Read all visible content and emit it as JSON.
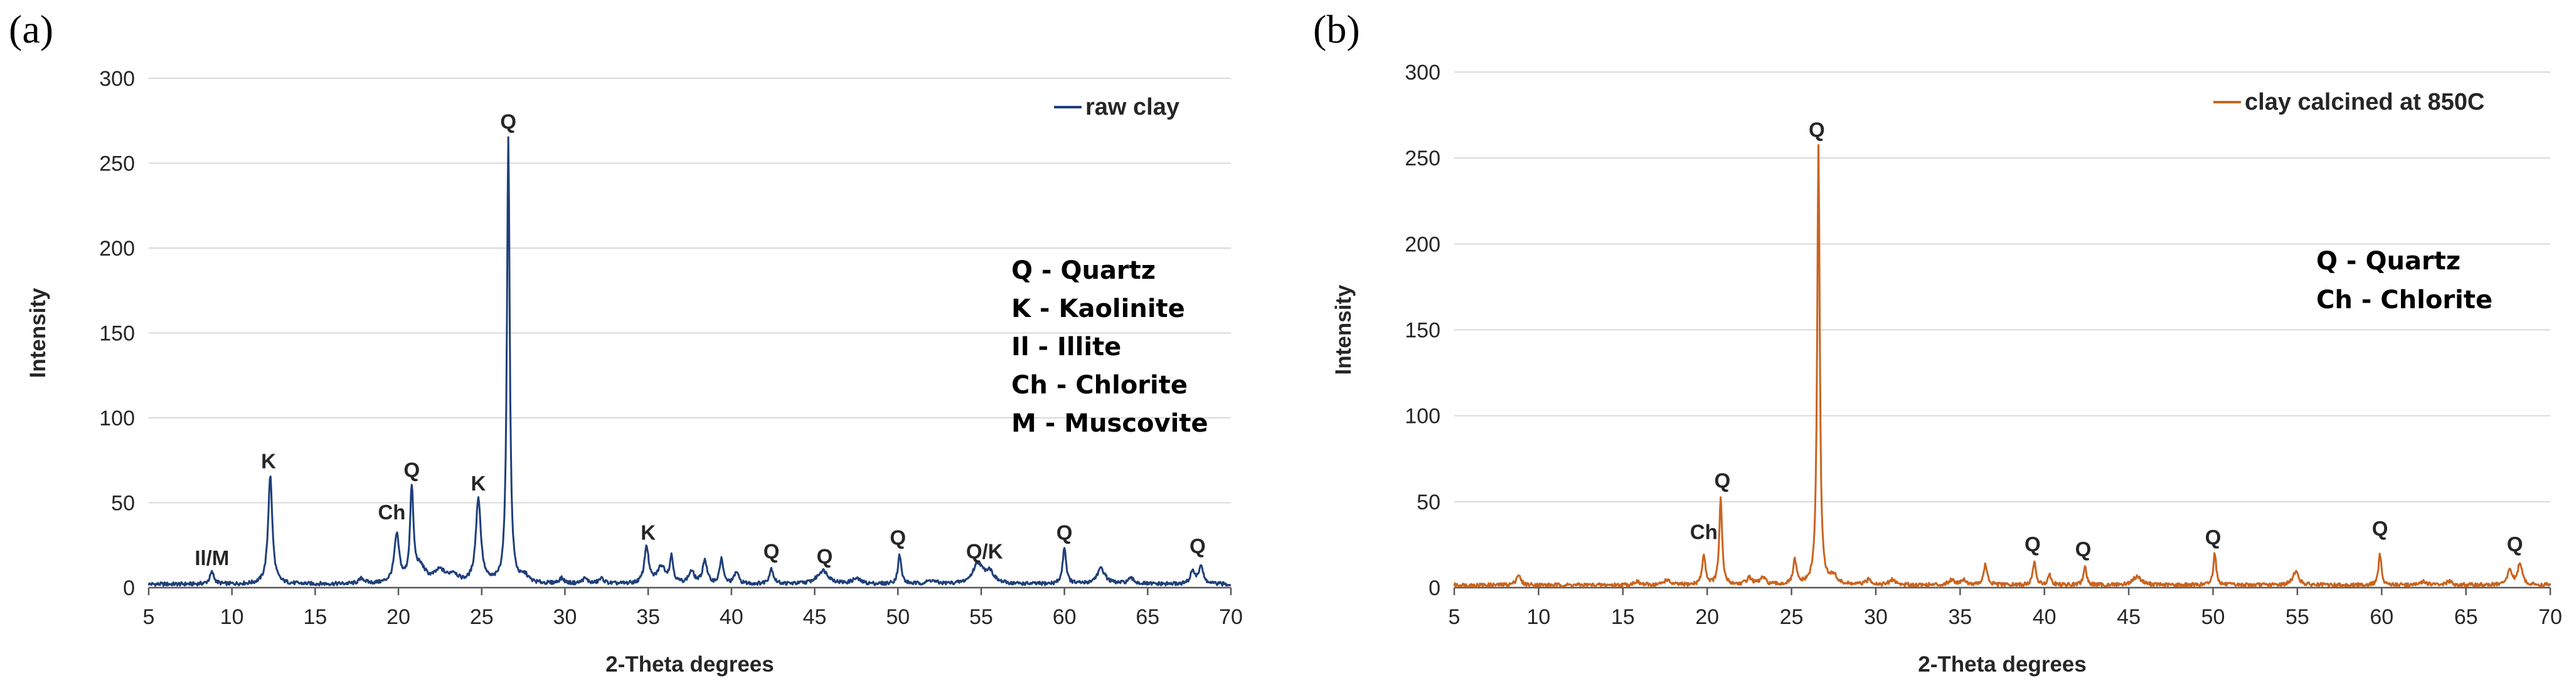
{
  "chart_data": [
    {
      "type": "line",
      "panel_label": "(a)",
      "xlabel": "2-Theta degrees",
      "ylabel": "Intensity",
      "xlim": [
        5,
        70
      ],
      "ylim": [
        0,
        300
      ],
      "x_ticks": [
        5,
        10,
        15,
        20,
        25,
        30,
        35,
        40,
        45,
        50,
        55,
        60,
        65,
        70
      ],
      "y_ticks": [
        0,
        50,
        100,
        150,
        200,
        250,
        300
      ],
      "grid": true,
      "legend_position": "top-right",
      "series": [
        {
          "name": "raw clay",
          "color": "#1f3f7a",
          "baseline": 2,
          "peaks": [
            [
              8.8,
              7,
              0.15
            ],
            [
              12.3,
              64,
              0.15
            ],
            [
              17.8,
              3,
              0.2
            ],
            [
              19.9,
              28,
              0.18
            ],
            [
              20.8,
              54,
              0.12
            ],
            [
              21.3,
              9,
              0.4
            ],
            [
              22.5,
              7,
              0.4
            ],
            [
              23.3,
              5,
              0.3
            ],
            [
              24.8,
              50,
              0.18
            ],
            [
              26.6,
              262,
              0.1
            ],
            [
              27.6,
              4,
              0.25
            ],
            [
              29.8,
              3,
              0.2
            ],
            [
              31.2,
              3,
              0.2
            ],
            [
              32.2,
              3,
              0.2
            ],
            [
              34.9,
              22,
              0.15
            ],
            [
              35.8,
              10,
              0.3
            ],
            [
              36.4,
              15,
              0.12
            ],
            [
              37.6,
              7,
              0.2
            ],
            [
              38.4,
              14,
              0.15
            ],
            [
              39.4,
              15,
              0.12
            ],
            [
              40.3,
              7,
              0.15
            ],
            [
              42.4,
              9,
              0.15
            ],
            [
              45.5,
              8,
              0.4
            ],
            [
              47.5,
              3,
              0.3
            ],
            [
              50.1,
              17,
              0.12
            ],
            [
              52.0,
              2,
              0.3
            ],
            [
              54.8,
              12,
              0.35
            ],
            [
              55.5,
              7,
              0.3
            ],
            [
              60.0,
              22,
              0.12
            ],
            [
              62.2,
              9,
              0.3
            ],
            [
              64.0,
              3,
              0.25
            ],
            [
              67.7,
              8,
              0.15
            ],
            [
              68.2,
              11,
              0.15
            ]
          ]
        }
      ],
      "annotations": [
        {
          "text": "Il/M",
          "x": 8.8,
          "y": 11
        },
        {
          "text": "K",
          "x": 12.2,
          "y": 68
        },
        {
          "text": "Ch",
          "x": 19.6,
          "y": 38
        },
        {
          "text": "Q",
          "x": 20.8,
          "y": 63
        },
        {
          "text": "K",
          "x": 24.8,
          "y": 55
        },
        {
          "text": "Q",
          "x": 26.6,
          "y": 268
        },
        {
          "text": "K",
          "x": 35.0,
          "y": 26
        },
        {
          "text": "Q",
          "x": 42.4,
          "y": 15
        },
        {
          "text": "Q",
          "x": 45.6,
          "y": 12
        },
        {
          "text": "Q",
          "x": 50.0,
          "y": 23
        },
        {
          "text": "Q/K",
          "x": 55.2,
          "y": 15
        },
        {
          "text": "Q",
          "x": 60.0,
          "y": 26
        },
        {
          "text": "Q",
          "x": 68.0,
          "y": 18
        }
      ],
      "key": [
        "Q - Quartz",
        "K - Kaolinite",
        "Il - Illite",
        "Ch - Chlorite",
        "M - Muscovite"
      ]
    },
    {
      "type": "line",
      "panel_label": "(b)",
      "xlabel": "2-Theta degrees",
      "ylabel": "Intensity",
      "xlim": [
        5,
        70
      ],
      "ylim": [
        0,
        300
      ],
      "x_ticks": [
        5,
        10,
        15,
        20,
        25,
        30,
        35,
        40,
        45,
        50,
        55,
        60,
        65,
        70
      ],
      "y_ticks": [
        0,
        50,
        100,
        150,
        200,
        250,
        300
      ],
      "grid": true,
      "legend_position": "top-right",
      "series": [
        {
          "name": "clay calcined at 850C",
          "color": "#c9641e",
          "baseline": 1.5,
          "peaks": [
            [
              8.8,
              6,
              0.15
            ],
            [
              15.8,
              2,
              0.2
            ],
            [
              17.6,
              3,
              0.2
            ],
            [
              19.8,
              17,
              0.12
            ],
            [
              20.8,
              50,
              0.1
            ],
            [
              22.5,
              4,
              0.2
            ],
            [
              23.3,
              4,
              0.2
            ],
            [
              25.2,
              14,
              0.12
            ],
            [
              26.6,
              255,
              0.09
            ],
            [
              27.5,
              5,
              0.2
            ],
            [
              29.6,
              3,
              0.2
            ],
            [
              31.0,
              3,
              0.2
            ],
            [
              34.5,
              3,
              0.2
            ],
            [
              35.2,
              3,
              0.2
            ],
            [
              36.5,
              12,
              0.12
            ],
            [
              39.4,
              14,
              0.1
            ],
            [
              40.3,
              6,
              0.12
            ],
            [
              42.4,
              11,
              0.1
            ],
            [
              45.5,
              5,
              0.3
            ],
            [
              50.1,
              19,
              0.1
            ],
            [
              54.9,
              8,
              0.2
            ],
            [
              59.9,
              18,
              0.1
            ],
            [
              62.5,
              2,
              0.2
            ],
            [
              64.0,
              2,
              0.2
            ],
            [
              67.6,
              9,
              0.15
            ],
            [
              68.2,
              13,
              0.15
            ]
          ]
        }
      ],
      "annotations": [
        {
          "text": "Ch",
          "x": 19.8,
          "y": 26
        },
        {
          "text": "Q",
          "x": 20.9,
          "y": 56
        },
        {
          "text": "Q",
          "x": 26.5,
          "y": 260
        },
        {
          "text": "Q",
          "x": 39.3,
          "y": 19
        },
        {
          "text": "Q",
          "x": 42.3,
          "y": 16
        },
        {
          "text": "Q",
          "x": 50.0,
          "y": 23
        },
        {
          "text": "Q",
          "x": 59.9,
          "y": 28
        },
        {
          "text": "Q",
          "x": 67.9,
          "y": 19
        }
      ],
      "key": [
        "Q - Quartz",
        "Ch - Chlorite"
      ]
    }
  ]
}
